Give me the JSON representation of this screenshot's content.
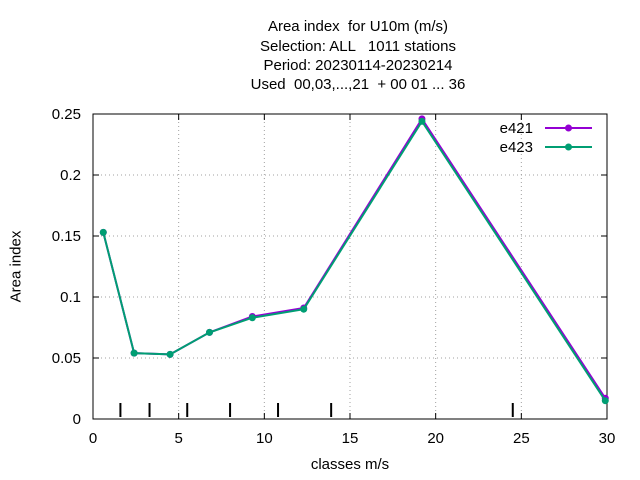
{
  "chart_data": {
    "type": "line",
    "title": [
      "Area index  for U10m (m/s)",
      "Selection: ALL   1011 stations",
      "Period: 20230114-20230214",
      "Used  00,03,...,21  + 00 01 ... 36"
    ],
    "xlabel": "classes m/s",
    "ylabel": "Area index",
    "xlim": [
      0,
      30
    ],
    "ylim": [
      0,
      0.25
    ],
    "xticks": [
      0,
      5,
      10,
      15,
      20,
      25,
      30
    ],
    "yticks": [
      0,
      0.05,
      0.1,
      0.15,
      0.2,
      0.25
    ],
    "grid": true,
    "legend_position": "top-right",
    "class_boundaries": [
      1.6,
      3.3,
      5.5,
      8.0,
      10.8,
      13.9,
      24.5
    ],
    "series": [
      {
        "name": "e421",
        "color": "#9400d3",
        "x": [
          0.6,
          2.4,
          4.5,
          6.8,
          9.3,
          12.3,
          19.2,
          29.9
        ],
        "y": [
          0.153,
          0.054,
          0.053,
          0.071,
          0.084,
          0.091,
          0.246,
          0.017
        ]
      },
      {
        "name": "e423",
        "color": "#009e73",
        "x": [
          0.6,
          2.4,
          4.5,
          6.8,
          9.3,
          12.3,
          19.2,
          29.9
        ],
        "y": [
          0.153,
          0.054,
          0.053,
          0.071,
          0.083,
          0.09,
          0.244,
          0.015
        ]
      }
    ]
  }
}
